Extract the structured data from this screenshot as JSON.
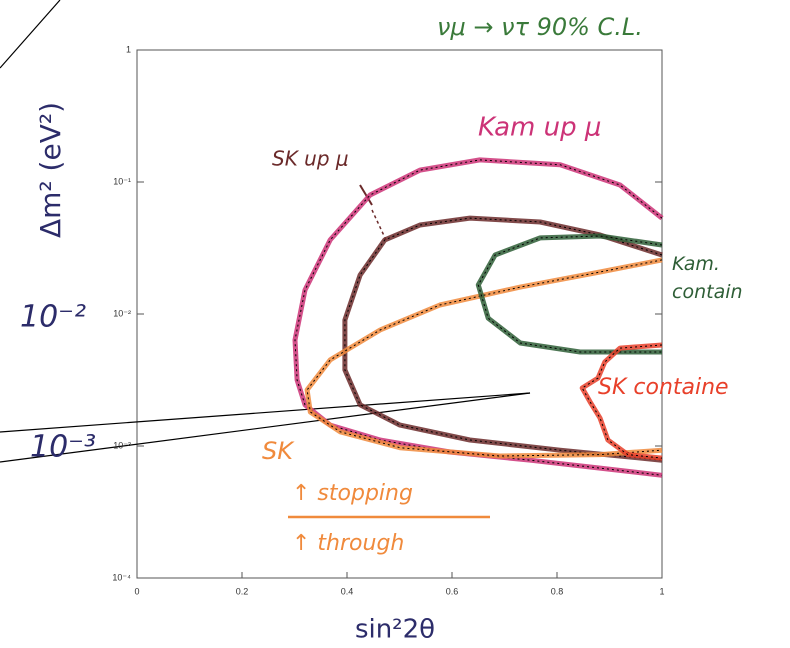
{
  "chart_data": {
    "type": "contour",
    "title": "νμ → ντ   90% C.L.",
    "x_label": "sin²2θ",
    "y_label": "Δm² (eV²)",
    "xlim": [
      0,
      1
    ],
    "ylim": [
      0.0001,
      1
    ],
    "log_y": true,
    "xticks": [
      0,
      0.2,
      0.4,
      0.6,
      0.8,
      1
    ],
    "yticks": [
      {
        "value": 1,
        "label": "1"
      },
      {
        "value": 0.1,
        "label": "10⁻¹"
      },
      {
        "value": 0.01,
        "label": "10⁻²"
      },
      {
        "value": 0.001,
        "label": "10⁻³"
      },
      {
        "value": 0.0001,
        "label": "10⁻⁴"
      }
    ],
    "series": [
      {
        "name": "Kam up μ",
        "color": "#cc3377",
        "x": [
          1,
          0.92,
          0.806,
          0.653,
          0.539,
          0.444,
          0.368,
          0.32,
          0.301,
          0.305,
          0.32,
          0.368,
          0.463,
          0.596,
          0.749,
          0.882,
          1
        ],
        "y": [
          0.0533,
          0.0949,
          0.135,
          0.147,
          0.123,
          0.0797,
          0.0364,
          0.0152,
          0.00635,
          0.00316,
          0.00205,
          0.00144,
          0.00111,
          0.0009,
          0.00078,
          0.00068,
          0.0006
        ]
      },
      {
        "name": "SK up μ",
        "color": "#6b2a2a",
        "x": [
          1,
          0.882,
          0.768,
          0.634,
          0.539,
          0.472,
          0.425,
          0.396,
          0.396,
          0.425,
          0.501,
          0.634,
          0.806,
          1
        ],
        "y": [
          0.028,
          0.0397,
          0.0498,
          0.0533,
          0.0472,
          0.0364,
          0.0197,
          0.009,
          0.00377,
          0.00205,
          0.00144,
          0.00111,
          0.00093,
          0.00078
        ]
      },
      {
        "name": "SK",
        "color": "#f08a3c",
        "x": [
          1,
          0.882,
          0.73,
          0.577,
          0.463,
          0.368,
          0.324,
          0.33,
          0.387,
          0.501,
          0.691,
          0.882,
          1
        ],
        "y": [
          0.0257,
          0.0208,
          0.016,
          0.0117,
          0.00757,
          0.00449,
          0.00266,
          0.00181,
          0.00128,
          0.00097,
          0.00084,
          0.00086,
          0.00093
        ]
      },
      {
        "name": "Kam. contain",
        "color": "#2e5e36",
        "x": [
          1,
          0.882,
          0.768,
          0.682,
          0.65,
          0.669,
          0.73,
          0.844,
          1
        ],
        "y": [
          0.0333,
          0.039,
          0.0377,
          0.028,
          0.0166,
          0.0093,
          0.00603,
          0.00515,
          0.00515
        ]
      },
      {
        "name": "SK containe",
        "color": "#e8402a",
        "x": [
          1,
          0.92,
          0.891,
          0.878,
          0.848,
          0.863,
          0.882,
          0.897,
          0.935,
          1
        ],
        "y": [
          0.00582,
          0.00552,
          0.00433,
          0.00327,
          0.00275,
          0.00216,
          0.00163,
          0.00111,
          0.00086,
          0.00081
        ]
      }
    ],
    "annotations": [
      "10⁻²",
      "10⁻³",
      "↑ stopping",
      "↑ through"
    ]
  }
}
